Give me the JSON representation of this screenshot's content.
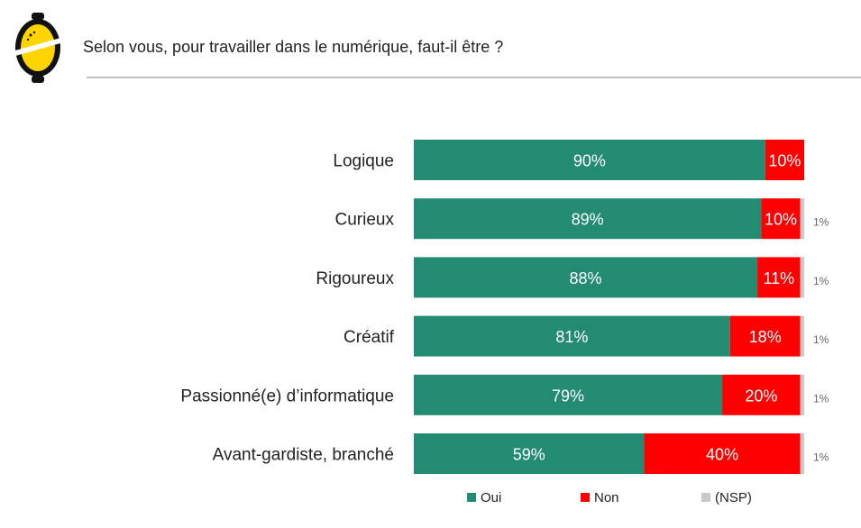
{
  "header": {
    "question": "Selon vous, pour travailler dans le numérique, faut-il être ?"
  },
  "chart_data": {
    "type": "bar",
    "orientation": "horizontal",
    "stacked": true,
    "title": "",
    "categories": [
      "Logique",
      "Curieux",
      "Rigoureux",
      "Créatif",
      "Passionné(e) d’informatique",
      "Avant-gardiste, branché"
    ],
    "series": [
      {
        "name": "Oui",
        "color": "#238b72",
        "values": [
          90,
          89,
          88,
          81,
          79,
          59
        ],
        "labels": [
          "90%",
          "89%",
          "88%",
          "81%",
          "79%",
          "59%"
        ]
      },
      {
        "name": "Non",
        "color": "#ff0000",
        "values": [
          10,
          10,
          11,
          18,
          20,
          40
        ],
        "labels": [
          "10%",
          "10%",
          "11%",
          "18%",
          "20%",
          "40%"
        ]
      },
      {
        "name": "(NSP)",
        "color": "#c9c9c9",
        "values": [
          0,
          1,
          1,
          1,
          1,
          1
        ],
        "labels": [
          "",
          "1%",
          "1%",
          "1%",
          "1%",
          "1%"
        ]
      }
    ],
    "xlim": [
      0,
      100
    ],
    "legend_position": "bottom",
    "grid": false,
    "xlabel": "",
    "ylabel": ""
  }
}
